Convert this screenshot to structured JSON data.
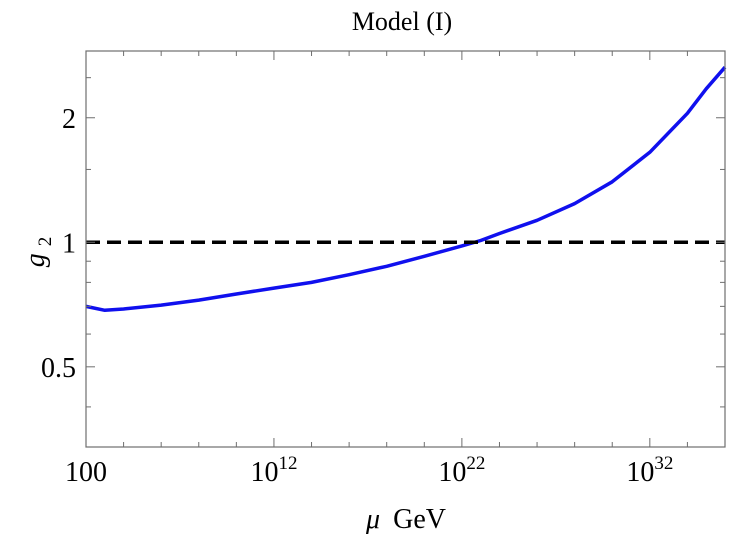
{
  "chart_data": {
    "type": "line",
    "title": "Model (I)",
    "xlabel_var": "μ",
    "xlabel_unit": "GeV",
    "ylabel_base": "g",
    "ylabel_sub": "2",
    "x_scale": "log10",
    "y_scale": "log",
    "xlim": [
      100,
      1e+36
    ],
    "ylim": [
      0.32,
      2.9
    ],
    "grid": false,
    "x_ticks": [
      {
        "value": 100,
        "base": "100",
        "exp": ""
      },
      {
        "value": 1000000000000.0,
        "base": "10",
        "exp": "12"
      },
      {
        "value": 1e+22,
        "base": "10",
        "exp": "22"
      },
      {
        "value": 1e+32,
        "base": "10",
        "exp": "32"
      }
    ],
    "y_ticks": [
      {
        "value": 0.5,
        "label": "0.5"
      },
      {
        "value": 1,
        "label": "1"
      },
      {
        "value": 2,
        "label": "2"
      }
    ],
    "series": [
      {
        "color": "#1010ee",
        "style": "solid",
        "x": [
          100,
          1000,
          10000.0,
          1000000.0,
          100000000.0,
          10000000000.0,
          1000000000000.0,
          100000000000000.0,
          1e+16,
          1e+18,
          1e+20,
          1e+22,
          1e+23,
          1e+24,
          1e+26,
          1e+28,
          1e+30,
          1e+32,
          1e+34,
          1e+35,
          1e+36
        ],
        "y": [
          0.7,
          0.685,
          0.69,
          0.705,
          0.725,
          0.75,
          0.775,
          0.8,
          0.835,
          0.875,
          0.925,
          0.98,
          1.01,
          1.05,
          1.13,
          1.24,
          1.4,
          1.65,
          2.05,
          2.35,
          2.65
        ]
      },
      {
        "color": "#000000",
        "style": "dashed",
        "x": [
          100,
          1e+36
        ],
        "y": [
          1,
          1
        ]
      }
    ]
  }
}
